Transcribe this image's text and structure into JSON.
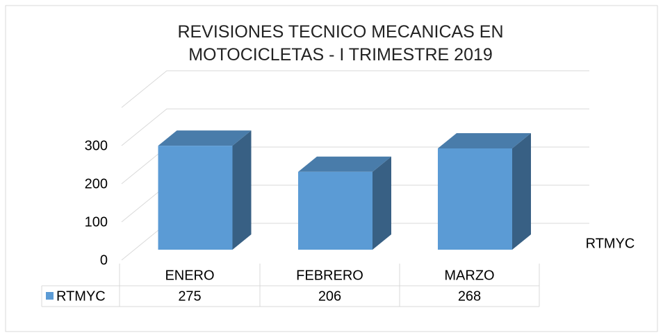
{
  "chart_data": {
    "type": "bar3d",
    "title": "REVISIONES TECNICO MECANICAS EN MOTOCICLETAS - I TRIMESTRE 2019",
    "categories": [
      "ENERO",
      "FEBRERO",
      "MARZO"
    ],
    "series": [
      {
        "name": "RTMYC",
        "color": "#5b9bd5",
        "values": [
          275,
          206,
          268
        ]
      }
    ],
    "ylim": [
      0,
      400
    ],
    "yticks": [
      0,
      100,
      200,
      300
    ],
    "grid": true
  }
}
